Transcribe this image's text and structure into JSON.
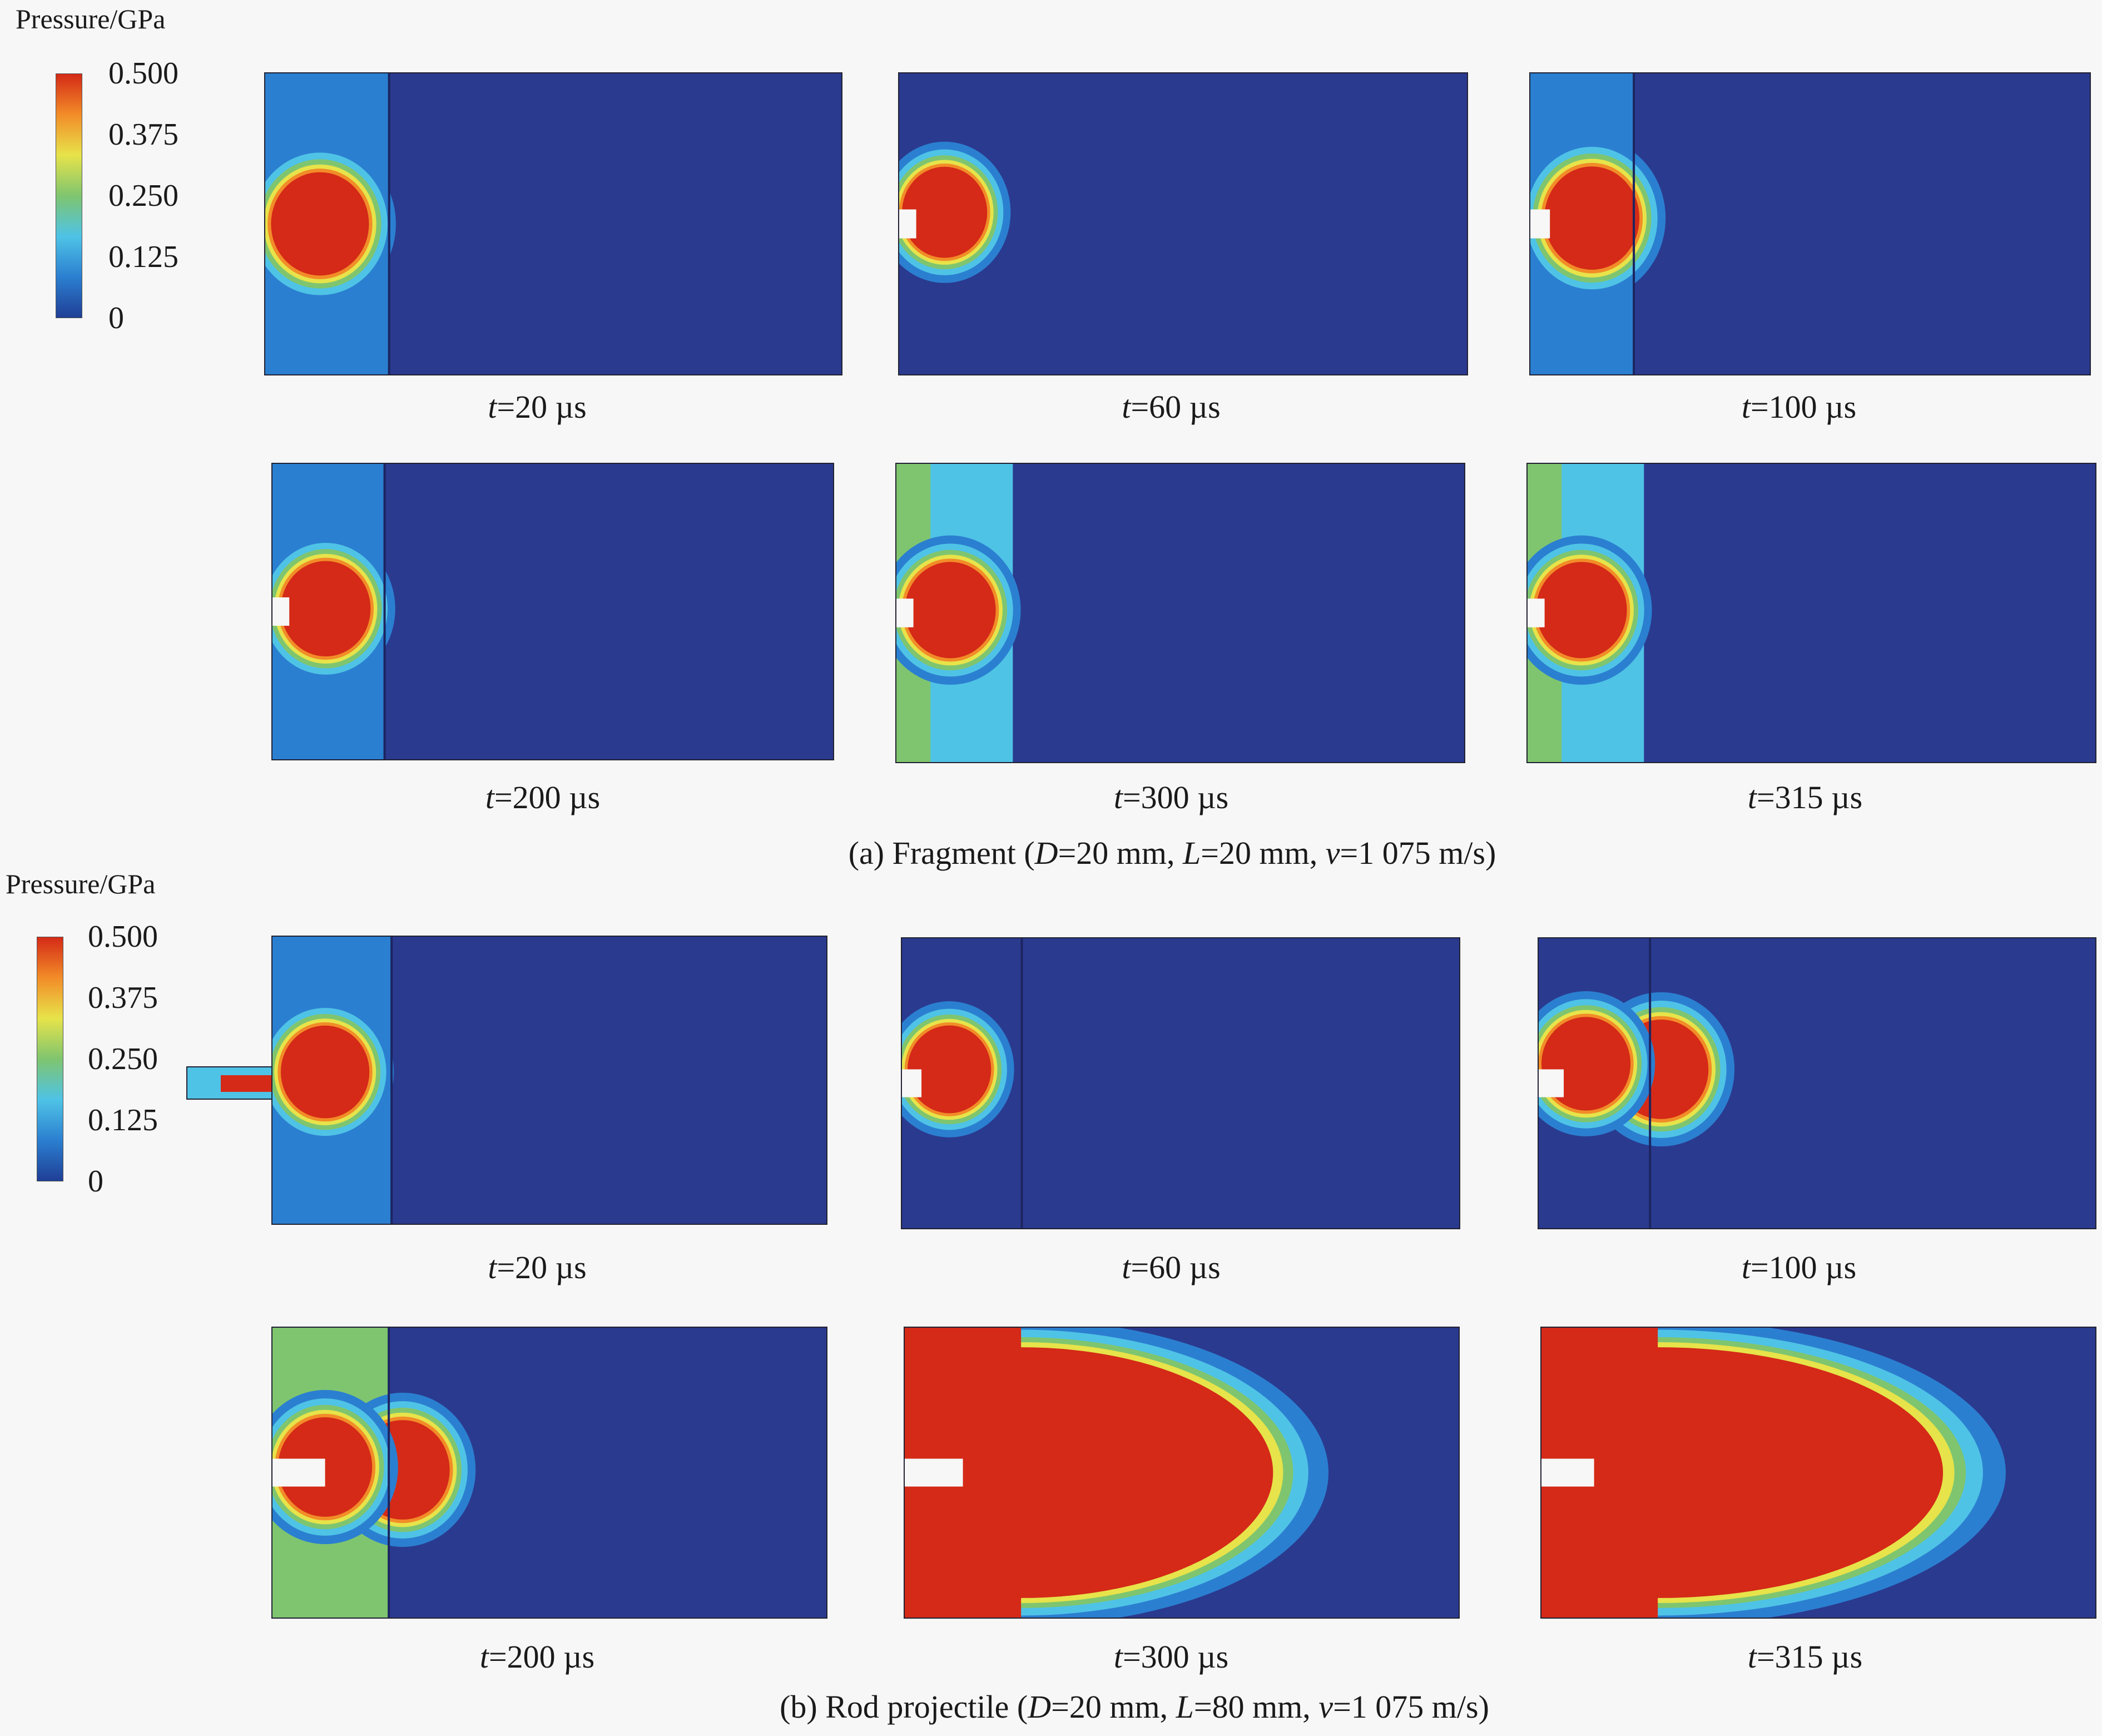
{
  "colorbar": {
    "title": "Pressure/GPa",
    "ticks": [
      "0.500",
      "0.375",
      "0.250",
      "0.125",
      "0"
    ],
    "colors": [
      "#1f3f96",
      "#2b7fd0",
      "#4fc3e6",
      "#7fc56f",
      "#e7e34a",
      "#f28c28",
      "#d42a17"
    ]
  },
  "colors": {
    "background": "#2a3a8f",
    "high": "#d42a17",
    "orange": "#f28c28",
    "yellow": "#e7e34a",
    "green": "#7fc56f",
    "cyan": "#4fc3e6",
    "lightblue": "#2b7fd0"
  },
  "section_a": {
    "caption": {
      "prefix": "(a) Fragment (",
      "D_sym": "D",
      "D_val": "=20 mm, ",
      "L_sym": "L",
      "L_val": "=20 mm, ",
      "v_sym": "v",
      "v_val": "=1 075 m/s)"
    },
    "labels": [
      {
        "t": "t",
        "rest": "=20 µs"
      },
      {
        "t": "t",
        "rest": "=60 µs"
      },
      {
        "t": "t",
        "rest": "=100 µs"
      },
      {
        "t": "t",
        "rest": "=200 µs"
      },
      {
        "t": "t",
        "rest": "=300 µs"
      },
      {
        "t": "t",
        "rest": "=315 µs"
      }
    ]
  },
  "section_b": {
    "caption": {
      "prefix": "(b) Rod projectile (",
      "D_sym": "D",
      "D_val": "=20 mm, ",
      "L_sym": "L",
      "L_val": "=80 mm, ",
      "v_sym": "v",
      "v_val": "=1 075 m/s)"
    },
    "labels": [
      {
        "t": "t",
        "rest": "=20 µs"
      },
      {
        "t": "t",
        "rest": "=60 µs"
      },
      {
        "t": "t",
        "rest": "=100 µs"
      },
      {
        "t": "t",
        "rest": "=200 µs"
      },
      {
        "t": "t",
        "rest": "=300 µs"
      },
      {
        "t": "t",
        "rest": "=315 µs"
      }
    ]
  }
}
